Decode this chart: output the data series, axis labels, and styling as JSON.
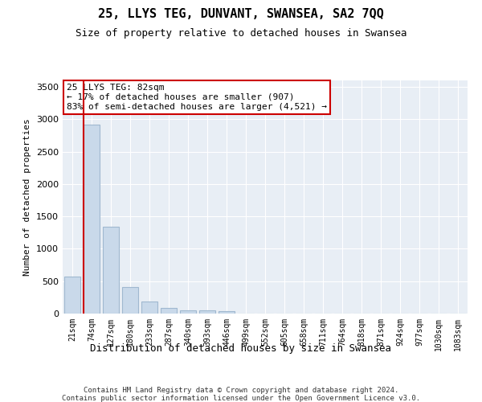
{
  "title": "25, LLYS TEG, DUNVANT, SWANSEA, SA2 7QQ",
  "subtitle": "Size of property relative to detached houses in Swansea",
  "xlabel": "Distribution of detached houses by size in Swansea",
  "ylabel": "Number of detached properties",
  "categories": [
    "21sqm",
    "74sqm",
    "127sqm",
    "180sqm",
    "233sqm",
    "287sqm",
    "340sqm",
    "393sqm",
    "446sqm",
    "499sqm",
    "552sqm",
    "605sqm",
    "658sqm",
    "711sqm",
    "764sqm",
    "818sqm",
    "871sqm",
    "924sqm",
    "977sqm",
    "1030sqm",
    "1083sqm"
  ],
  "bar_heights": [
    570,
    2920,
    1335,
    415,
    185,
    90,
    55,
    50,
    40,
    0,
    0,
    0,
    0,
    0,
    0,
    0,
    0,
    0,
    0,
    0,
    0
  ],
  "bar_color": "#c9d9ea",
  "bar_edgecolor": "#a0b8d0",
  "vline_color": "#cc0000",
  "annotation_line1": "25 LLYS TEG: 82sqm",
  "annotation_line2": "← 17% of detached houses are smaller (907)",
  "annotation_line3": "83% of semi-detached houses are larger (4,521) →",
  "annotation_box_edgecolor": "#cc0000",
  "ylim": [
    0,
    3600
  ],
  "yticks": [
    0,
    500,
    1000,
    1500,
    2000,
    2500,
    3000,
    3500
  ],
  "background_color": "#e8eef5",
  "grid_color": "#ffffff",
  "footer_line1": "Contains HM Land Registry data © Crown copyright and database right 2024.",
  "footer_line2": "Contains public sector information licensed under the Open Government Licence v3.0.",
  "title_fontsize": 11,
  "subtitle_fontsize": 9,
  "ylabel_fontsize": 8,
  "xlabel_fontsize": 9,
  "tick_fontsize": 7,
  "annotation_fontsize": 8,
  "footer_fontsize": 6.5
}
